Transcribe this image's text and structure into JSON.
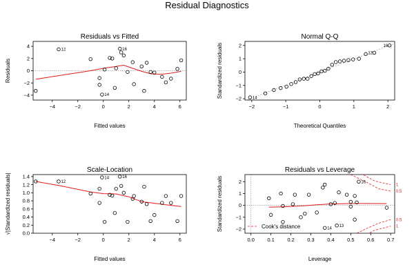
{
  "title": "Residual Diagnostics",
  "chart_data": [
    {
      "type": "scatter",
      "title": "Residuals vs Fitted",
      "xlabel": "Fitted values",
      "ylabel": "Residuals",
      "xlim": [
        -5.5,
        6.5
      ],
      "ylim": [
        -4.8,
        4.8
      ],
      "xticks": [
        -4,
        -2,
        0,
        2,
        4,
        6
      ],
      "yticks": [
        -4,
        -2,
        0,
        2,
        4
      ],
      "reference_line": 0,
      "points": [
        {
          "x": -5.3,
          "y": -3.3,
          "label": ""
        },
        {
          "x": -3.5,
          "y": 3.5,
          "label": "12"
        },
        {
          "x": -1.0,
          "y": 1.9,
          "label": ""
        },
        {
          "x": -0.3,
          "y": -1.2,
          "label": ""
        },
        {
          "x": -0.3,
          "y": -2.3,
          "label": ""
        },
        {
          "x": -0.1,
          "y": -3.9,
          "label": "14"
        },
        {
          "x": 0.1,
          "y": 0.2,
          "label": ""
        },
        {
          "x": 0.5,
          "y": 2.1,
          "label": ""
        },
        {
          "x": 0.7,
          "y": 2.0,
          "label": ""
        },
        {
          "x": 0.9,
          "y": -2.8,
          "label": ""
        },
        {
          "x": 1.0,
          "y": 0.4,
          "label": ""
        },
        {
          "x": 1.3,
          "y": 3.6,
          "label": "16"
        },
        {
          "x": 1.4,
          "y": 3.0,
          "label": ""
        },
        {
          "x": 1.6,
          "y": 2.5,
          "label": ""
        },
        {
          "x": 1.9,
          "y": -0.2,
          "label": ""
        },
        {
          "x": 2.3,
          "y": 1.4,
          "label": ""
        },
        {
          "x": 2.4,
          "y": -2.2,
          "label": ""
        },
        {
          "x": 3.0,
          "y": 0.7,
          "label": ""
        },
        {
          "x": 3.2,
          "y": -3.3,
          "label": ""
        },
        {
          "x": 3.4,
          "y": 1.3,
          "label": ""
        },
        {
          "x": 3.7,
          "y": -0.2,
          "label": ""
        },
        {
          "x": 4.0,
          "y": -0.3,
          "label": ""
        },
        {
          "x": 4.6,
          "y": -1.0,
          "label": ""
        },
        {
          "x": 4.9,
          "y": -1.9,
          "label": ""
        },
        {
          "x": 5.3,
          "y": -1.3,
          "label": ""
        },
        {
          "x": 5.8,
          "y": 0.3,
          "label": ""
        },
        {
          "x": 6.1,
          "y": 1.7,
          "label": ""
        }
      ],
      "smooth": [
        {
          "x": -5.3,
          "y": -1.4
        },
        {
          "x": -3.5,
          "y": -0.8
        },
        {
          "x": -1.0,
          "y": 0.0
        },
        {
          "x": 0.0,
          "y": 0.4
        },
        {
          "x": 1.0,
          "y": 0.7
        },
        {
          "x": 1.6,
          "y": 0.9
        },
        {
          "x": 2.3,
          "y": 0.4
        },
        {
          "x": 3.0,
          "y": -0.1
        },
        {
          "x": 3.7,
          "y": -0.5
        },
        {
          "x": 4.5,
          "y": -0.6
        },
        {
          "x": 5.3,
          "y": -0.4
        },
        {
          "x": 6.1,
          "y": -0.1
        }
      ]
    },
    {
      "type": "scatter",
      "title": "Normal Q-Q",
      "xlabel": "Theoretical Quantiles",
      "ylabel": "Standardized residuals",
      "xlim": [
        -2.2,
        2.2
      ],
      "ylim": [
        -2.1,
        2.3
      ],
      "xticks": [
        -2,
        -1,
        0,
        1,
        2
      ],
      "yticks": [
        -2,
        -1,
        0,
        1,
        2
      ],
      "qq_line": [
        {
          "x": -2.2,
          "y": -2.15
        },
        {
          "x": 2.2,
          "y": 2.15
        }
      ],
      "points": [
        {
          "x": -2.05,
          "y": -1.9,
          "label": "14"
        },
        {
          "x": -1.6,
          "y": -1.6,
          "label": ""
        },
        {
          "x": -1.35,
          "y": -1.35,
          "label": ""
        },
        {
          "x": -1.15,
          "y": -1.2,
          "label": ""
        },
        {
          "x": -0.98,
          "y": -1.1,
          "label": ""
        },
        {
          "x": -0.84,
          "y": -0.9,
          "label": ""
        },
        {
          "x": -0.71,
          "y": -0.75,
          "label": ""
        },
        {
          "x": -0.59,
          "y": -0.55,
          "label": ""
        },
        {
          "x": -0.47,
          "y": -0.5,
          "label": ""
        },
        {
          "x": -0.36,
          "y": -0.5,
          "label": ""
        },
        {
          "x": -0.25,
          "y": -0.3,
          "label": ""
        },
        {
          "x": -0.15,
          "y": -0.15,
          "label": ""
        },
        {
          "x": -0.05,
          "y": -0.1,
          "label": ""
        },
        {
          "x": 0.05,
          "y": 0.05,
          "label": ""
        },
        {
          "x": 0.15,
          "y": 0.1,
          "label": ""
        },
        {
          "x": 0.25,
          "y": 0.25,
          "label": ""
        },
        {
          "x": 0.36,
          "y": 0.55,
          "label": ""
        },
        {
          "x": 0.47,
          "y": 0.75,
          "label": ""
        },
        {
          "x": 0.59,
          "y": 0.8,
          "label": ""
        },
        {
          "x": 0.71,
          "y": 0.85,
          "label": ""
        },
        {
          "x": 0.84,
          "y": 0.9,
          "label": ""
        },
        {
          "x": 0.98,
          "y": 0.95,
          "label": ""
        },
        {
          "x": 1.15,
          "y": 1.0,
          "label": ""
        },
        {
          "x": 1.35,
          "y": 1.35,
          "label": ""
        },
        {
          "x": 1.6,
          "y": 1.45,
          "label": "12"
        },
        {
          "x": 2.05,
          "y": 2.0,
          "label": "16"
        }
      ]
    },
    {
      "type": "scatter",
      "title": "Scale-Location",
      "xlabel": "Fitted values",
      "ylabel": "√|Standardized residuals|",
      "xlim": [
        -5.5,
        6.5
      ],
      "ylim": [
        0.0,
        1.45
      ],
      "xticks": [
        -4,
        -2,
        0,
        2,
        4,
        6
      ],
      "yticks": [
        0.0,
        0.2,
        0.4,
        0.6,
        0.8,
        1.0,
        1.2,
        1.4
      ],
      "ytick_labels": [
        "0.0",
        "0.2",
        "0.4",
        "0.6",
        "0.8",
        "1.0",
        "1.2",
        "1.4"
      ],
      "points": [
        {
          "x": -5.3,
          "y": 1.28,
          "label": ""
        },
        {
          "x": -3.5,
          "y": 1.28,
          "label": "12"
        },
        {
          "x": -1.0,
          "y": 0.98,
          "label": ""
        },
        {
          "x": -0.3,
          "y": 1.1,
          "label": ""
        },
        {
          "x": -0.3,
          "y": 0.75,
          "label": ""
        },
        {
          "x": -0.1,
          "y": 1.38,
          "label": "14"
        },
        {
          "x": 0.1,
          "y": 0.28,
          "label": ""
        },
        {
          "x": 0.5,
          "y": 0.95,
          "label": ""
        },
        {
          "x": 0.7,
          "y": 0.93,
          "label": ""
        },
        {
          "x": 0.9,
          "y": 0.5,
          "label": ""
        },
        {
          "x": 1.0,
          "y": 1.1,
          "label": ""
        },
        {
          "x": 1.3,
          "y": 1.4,
          "label": "16"
        },
        {
          "x": 1.4,
          "y": 1.17,
          "label": ""
        },
        {
          "x": 1.6,
          "y": 1.0,
          "label": ""
        },
        {
          "x": 1.9,
          "y": 0.28,
          "label": ""
        },
        {
          "x": 2.3,
          "y": 0.85,
          "label": ""
        },
        {
          "x": 2.4,
          "y": 0.92,
          "label": ""
        },
        {
          "x": 3.0,
          "y": 0.78,
          "label": ""
        },
        {
          "x": 3.2,
          "y": 1.15,
          "label": ""
        },
        {
          "x": 3.4,
          "y": 0.72,
          "label": ""
        },
        {
          "x": 3.7,
          "y": 0.3,
          "label": ""
        },
        {
          "x": 4.0,
          "y": 0.45,
          "label": ""
        },
        {
          "x": 4.6,
          "y": 0.75,
          "label": ""
        },
        {
          "x": 4.9,
          "y": 0.92,
          "label": ""
        },
        {
          "x": 5.3,
          "y": 0.75,
          "label": ""
        },
        {
          "x": 5.8,
          "y": 0.3,
          "label": ""
        },
        {
          "x": 6.1,
          "y": 0.92,
          "label": ""
        }
      ],
      "smooth": [
        {
          "x": -5.3,
          "y": 1.28
        },
        {
          "x": -3.5,
          "y": 1.18
        },
        {
          "x": -1.0,
          "y": 1.02
        },
        {
          "x": 0.0,
          "y": 0.98
        },
        {
          "x": 1.0,
          "y": 0.97
        },
        {
          "x": 2.0,
          "y": 0.9
        },
        {
          "x": 3.0,
          "y": 0.78
        },
        {
          "x": 4.0,
          "y": 0.74
        },
        {
          "x": 5.0,
          "y": 0.7
        },
        {
          "x": 6.1,
          "y": 0.66
        }
      ]
    },
    {
      "type": "scatter",
      "title": "Residuals vs Leverage",
      "xlabel": "Leverage",
      "ylabel": "Standardized residuals",
      "xlim": [
        -0.03,
        0.72
      ],
      "ylim": [
        -2.35,
        2.6
      ],
      "xticks": [
        0.0,
        0.1,
        0.2,
        0.3,
        0.4,
        0.5,
        0.6,
        0.7
      ],
      "xtick_labels": [
        "0.0",
        "0.1",
        "0.2",
        "0.3",
        "0.4",
        "0.5",
        "0.6",
        "0.7"
      ],
      "yticks": [
        -2,
        -1,
        0,
        1,
        2
      ],
      "reference_line": 0,
      "legend": {
        "label": "Cook's distance",
        "placement": "bottom-left"
      },
      "cook_contours": [
        {
          "level": "1",
          "sign": 1,
          "points": [
            {
              "x": 0.45,
              "y": 3.2
            },
            {
              "x": 0.55,
              "y": 2.7
            },
            {
              "x": 0.62,
              "y": 2.05
            },
            {
              "x": 0.7,
              "y": 1.75
            }
          ]
        },
        {
          "level": "0.5",
          "sign": 1,
          "points": [
            {
              "x": 0.5,
              "y": 2.6
            },
            {
              "x": 0.58,
              "y": 1.95
            },
            {
              "x": 0.64,
              "y": 1.4
            },
            {
              "x": 0.7,
              "y": 1.2
            }
          ]
        },
        {
          "level": "0.5",
          "sign": -1,
          "points": [
            {
              "x": 0.5,
              "y": -2.6
            },
            {
              "x": 0.58,
              "y": -1.95
            },
            {
              "x": 0.64,
              "y": -1.5
            },
            {
              "x": 0.7,
              "y": -1.2
            }
          ]
        },
        {
          "level": "1",
          "sign": -1,
          "points": [
            {
              "x": 0.45,
              "y": -3.2
            },
            {
              "x": 0.55,
              "y": -2.7
            },
            {
              "x": 0.62,
              "y": -2.1
            },
            {
              "x": 0.7,
              "y": -1.75
            }
          ]
        }
      ],
      "points": [
        {
          "x": 0.09,
          "y": 0.6,
          "label": ""
        },
        {
          "x": 0.1,
          "y": -0.8,
          "label": ""
        },
        {
          "x": 0.15,
          "y": 1.0,
          "label": ""
        },
        {
          "x": 0.16,
          "y": -1.4,
          "label": ""
        },
        {
          "x": 0.16,
          "y": -0.05,
          "label": ""
        },
        {
          "x": 0.21,
          "y": 0.1,
          "label": ""
        },
        {
          "x": 0.22,
          "y": 0.9,
          "label": ""
        },
        {
          "x": 0.25,
          "y": -1.0,
          "label": ""
        },
        {
          "x": 0.27,
          "y": -0.7,
          "label": ""
        },
        {
          "x": 0.29,
          "y": 0.9,
          "label": ""
        },
        {
          "x": 0.33,
          "y": -0.6,
          "label": ""
        },
        {
          "x": 0.36,
          "y": 1.5,
          "label": ""
        },
        {
          "x": 0.37,
          "y": 1.75,
          "label": ""
        },
        {
          "x": 0.37,
          "y": -1.9,
          "label": "14"
        },
        {
          "x": 0.4,
          "y": 0.1,
          "label": ""
        },
        {
          "x": 0.42,
          "y": 0.2,
          "label": ""
        },
        {
          "x": 0.43,
          "y": -1.7,
          "label": "13"
        },
        {
          "x": 0.44,
          "y": 1.1,
          "label": ""
        },
        {
          "x": 0.48,
          "y": 0.9,
          "label": ""
        },
        {
          "x": 0.5,
          "y": -0.1,
          "label": ""
        },
        {
          "x": 0.5,
          "y": 0.3,
          "label": ""
        },
        {
          "x": 0.52,
          "y": -1.2,
          "label": ""
        },
        {
          "x": 0.52,
          "y": 0.8,
          "label": ""
        },
        {
          "x": 0.53,
          "y": 0.25,
          "label": ""
        },
        {
          "x": 0.54,
          "y": 2.0,
          "label": "16"
        },
        {
          "x": 0.68,
          "y": -0.2,
          "label": ""
        }
      ],
      "smooth": [
        {
          "x": 0.09,
          "y": -0.15
        },
        {
          "x": 0.16,
          "y": -0.12
        },
        {
          "x": 0.25,
          "y": -0.05
        },
        {
          "x": 0.33,
          "y": 0.05
        },
        {
          "x": 0.4,
          "y": 0.12
        },
        {
          "x": 0.48,
          "y": 0.15
        },
        {
          "x": 0.54,
          "y": 0.16
        },
        {
          "x": 0.68,
          "y": 0.15
        }
      ]
    }
  ]
}
